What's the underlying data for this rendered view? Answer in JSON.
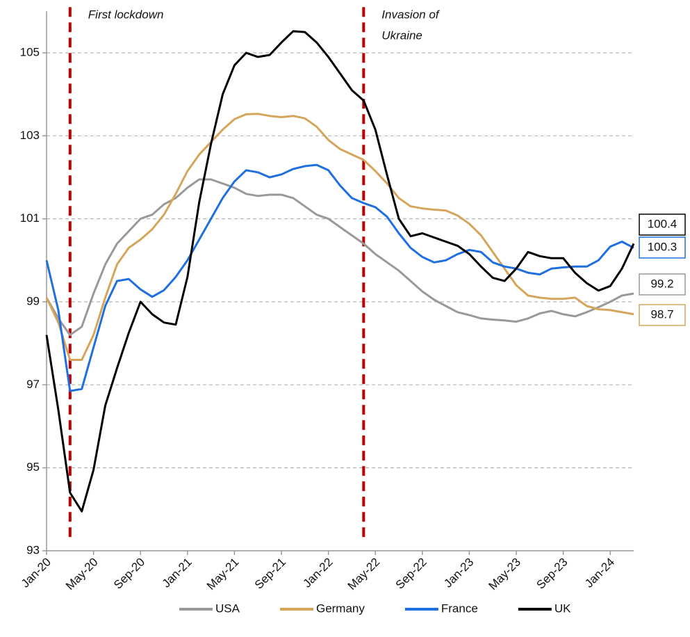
{
  "chart_data": {
    "type": "line",
    "categories": [
      "Jan-20",
      null,
      null,
      null,
      "May-20",
      null,
      null,
      null,
      "Sep-20",
      null,
      null,
      null,
      "Jan-21",
      null,
      null,
      null,
      "May-21",
      null,
      null,
      null,
      "Sep-21",
      null,
      null,
      null,
      "Jan-22",
      null,
      null,
      null,
      "May-22",
      null,
      null,
      null,
      "Sep-22",
      null,
      null,
      null,
      "Jan-23",
      null,
      null,
      null,
      "May-23",
      null,
      null,
      null,
      "Sep-23",
      null,
      null,
      null,
      "Jan-24",
      null,
      null
    ],
    "series": [
      {
        "name": "USA",
        "color": "#999999",
        "values": [
          99.1,
          98.6,
          98.2,
          98.4,
          99.2,
          99.9,
          100.4,
          100.7,
          101.0,
          101.1,
          101.35,
          101.5,
          101.75,
          101.95,
          101.95,
          101.85,
          101.75,
          101.6,
          101.55,
          101.58,
          101.58,
          101.5,
          101.3,
          101.1,
          101.0,
          100.8,
          100.6,
          100.4,
          100.15,
          99.95,
          99.75,
          99.5,
          99.25,
          99.05,
          98.9,
          98.75,
          98.68,
          98.6,
          98.57,
          98.55,
          98.52,
          98.6,
          98.72,
          98.78,
          98.7,
          98.65,
          98.75,
          98.87,
          99.0,
          99.15,
          99.2
        ]
      },
      {
        "name": "Germany",
        "color": "#d4a55a",
        "values": [
          99.1,
          98.5,
          97.6,
          97.6,
          98.2,
          99.1,
          99.9,
          100.3,
          100.5,
          100.75,
          101.1,
          101.6,
          102.15,
          102.55,
          102.85,
          103.15,
          103.4,
          103.52,
          103.53,
          103.48,
          103.45,
          103.48,
          103.42,
          103.22,
          102.9,
          102.68,
          102.55,
          102.42,
          102.15,
          101.85,
          101.5,
          101.3,
          101.25,
          101.22,
          101.2,
          101.08,
          100.88,
          100.6,
          100.2,
          99.8,
          99.4,
          99.15,
          99.1,
          99.07,
          99.07,
          99.1,
          98.9,
          98.82,
          98.8,
          98.75,
          98.7
        ]
      },
      {
        "name": "France",
        "color": "#1f6fe0",
        "values": [
          100.0,
          98.8,
          96.85,
          96.9,
          97.9,
          98.9,
          99.5,
          99.55,
          99.3,
          99.12,
          99.28,
          99.6,
          100.0,
          100.5,
          101.0,
          101.5,
          101.9,
          102.17,
          102.12,
          102.0,
          102.07,
          102.2,
          102.27,
          102.3,
          102.17,
          101.8,
          101.5,
          101.38,
          101.28,
          101.05,
          100.65,
          100.3,
          100.08,
          99.95,
          100.0,
          100.15,
          100.25,
          100.2,
          99.95,
          99.85,
          99.8,
          99.7,
          99.66,
          99.8,
          99.83,
          99.85,
          99.85,
          100.0,
          100.33,
          100.45,
          100.3
        ]
      },
      {
        "name": "UK",
        "color": "#000000",
        "values": [
          98.2,
          96.4,
          94.4,
          93.95,
          94.95,
          96.5,
          97.4,
          98.25,
          99.0,
          98.7,
          98.5,
          98.45,
          99.6,
          101.4,
          102.8,
          104.0,
          104.7,
          105.0,
          104.9,
          104.95,
          105.25,
          105.52,
          105.5,
          105.25,
          104.9,
          104.5,
          104.1,
          103.85,
          103.15,
          102.05,
          101.0,
          100.58,
          100.65,
          100.55,
          100.45,
          100.35,
          100.15,
          99.85,
          99.58,
          99.5,
          99.8,
          100.2,
          100.1,
          100.05,
          100.05,
          99.7,
          99.45,
          99.27,
          99.38,
          99.8,
          100.4
        ]
      }
    ],
    "ylim": [
      93,
      106
    ],
    "yticks": [
      93,
      95,
      97,
      99,
      101,
      103,
      105
    ],
    "grid": true,
    "annotations": [
      {
        "lines": [
          "First lockdown"
        ],
        "index": 2,
        "color": "#c00000"
      },
      {
        "lines": [
          "Invasion of",
          "Ukraine"
        ],
        "index": 27,
        "color": "#c00000"
      }
    ],
    "legend": "bottom"
  }
}
